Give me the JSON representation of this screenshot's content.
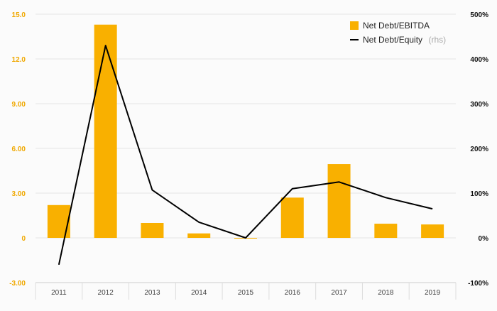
{
  "chart_data": {
    "type": "bar",
    "categories": [
      "2011",
      "2012",
      "2013",
      "2014",
      "2015",
      "2016",
      "2017",
      "2018",
      "2019"
    ],
    "series": [
      {
        "name": "Net Debt/EBITDA",
        "type": "bar",
        "axis": "left",
        "values": [
          2.2,
          14.3,
          1.0,
          0.3,
          -0.05,
          2.7,
          4.95,
          0.95,
          0.9
        ]
      },
      {
        "name": "Net Debt/Equity",
        "type": "line",
        "axis": "right",
        "values": [
          -60,
          430,
          107,
          35,
          0,
          110,
          125,
          90,
          65
        ]
      }
    ],
    "legend": {
      "position": "top-right",
      "items": [
        {
          "label": "Net Debt/EBITDA",
          "suffix": ""
        },
        {
          "label": "Net Debt/Equity",
          "suffix": "(rhs)"
        }
      ]
    },
    "y_left": {
      "ylim": [
        -3,
        15
      ],
      "ticks": [
        15,
        12,
        9,
        6,
        3,
        0,
        -3
      ],
      "tick_labels": [
        "15.0",
        "12.0",
        "9.00",
        "6.00",
        "3.00",
        "0",
        "-3.00"
      ]
    },
    "y_right": {
      "ylim": [
        -100,
        500
      ],
      "ticks": [
        500,
        400,
        300,
        200,
        100,
        0,
        -100
      ],
      "tick_labels": [
        "500%",
        "400%",
        "300%",
        "200%",
        "100%",
        "0%",
        "-100%"
      ]
    },
    "grid": true,
    "colors": {
      "bar": "#f9b000",
      "line": "#000000",
      "left_axis_text": "#f0a800",
      "grid": "#e6e6e6"
    }
  }
}
